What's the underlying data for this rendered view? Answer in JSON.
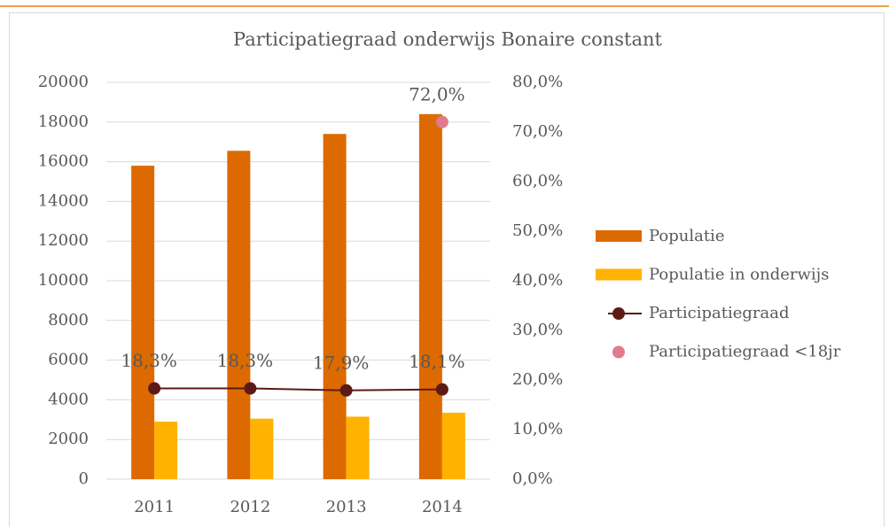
{
  "chart_data": {
    "type": "bar",
    "title": "Participatiegraad onderwijs Bonaire constant",
    "categories": [
      "2011",
      "2012",
      "2013",
      "2014"
    ],
    "ylim": [
      0,
      20000
    ],
    "yticks": [
      0,
      2000,
      4000,
      6000,
      8000,
      10000,
      12000,
      14000,
      16000,
      18000,
      20000
    ],
    "y2lim": [
      0,
      80
    ],
    "y2ticks": [
      {
        "value": 0,
        "label": "0,0%"
      },
      {
        "value": 10,
        "label": "10,0%"
      },
      {
        "value": 20,
        "label": "20,0%"
      },
      {
        "value": 30,
        "label": "30,0%"
      },
      {
        "value": 40,
        "label": "40,0%"
      },
      {
        "value": 50,
        "label": "50,0%"
      },
      {
        "value": 60,
        "label": "60,0%"
      },
      {
        "value": 70,
        "label": "70,0%"
      },
      {
        "value": 80,
        "label": "80,0%"
      }
    ],
    "grid": true,
    "legend": "right",
    "series": [
      {
        "name": "Populatie",
        "type": "bar",
        "color": "#dd6a00",
        "values": [
          15800,
          16550,
          17400,
          18400
        ]
      },
      {
        "name": "Populatie in onderwijs",
        "type": "bar",
        "color": "#ffb300",
        "values": [
          2900,
          3050,
          3150,
          3350
        ]
      },
      {
        "name": "Participatiegraad",
        "type": "line",
        "axis": "y2",
        "color": "#5c1a16",
        "values": [
          18.3,
          18.3,
          17.9,
          18.1
        ],
        "value_labels": [
          "18,3%",
          "18,3%",
          "17,9%",
          "18,1%"
        ]
      },
      {
        "name": "Participatiegraad <18jr",
        "type": "scatter",
        "axis": "y2",
        "color": "#e07a8c",
        "values": [
          null,
          null,
          null,
          72.0
        ],
        "value_labels": [
          null,
          null,
          null,
          "72,0%"
        ]
      }
    ]
  }
}
